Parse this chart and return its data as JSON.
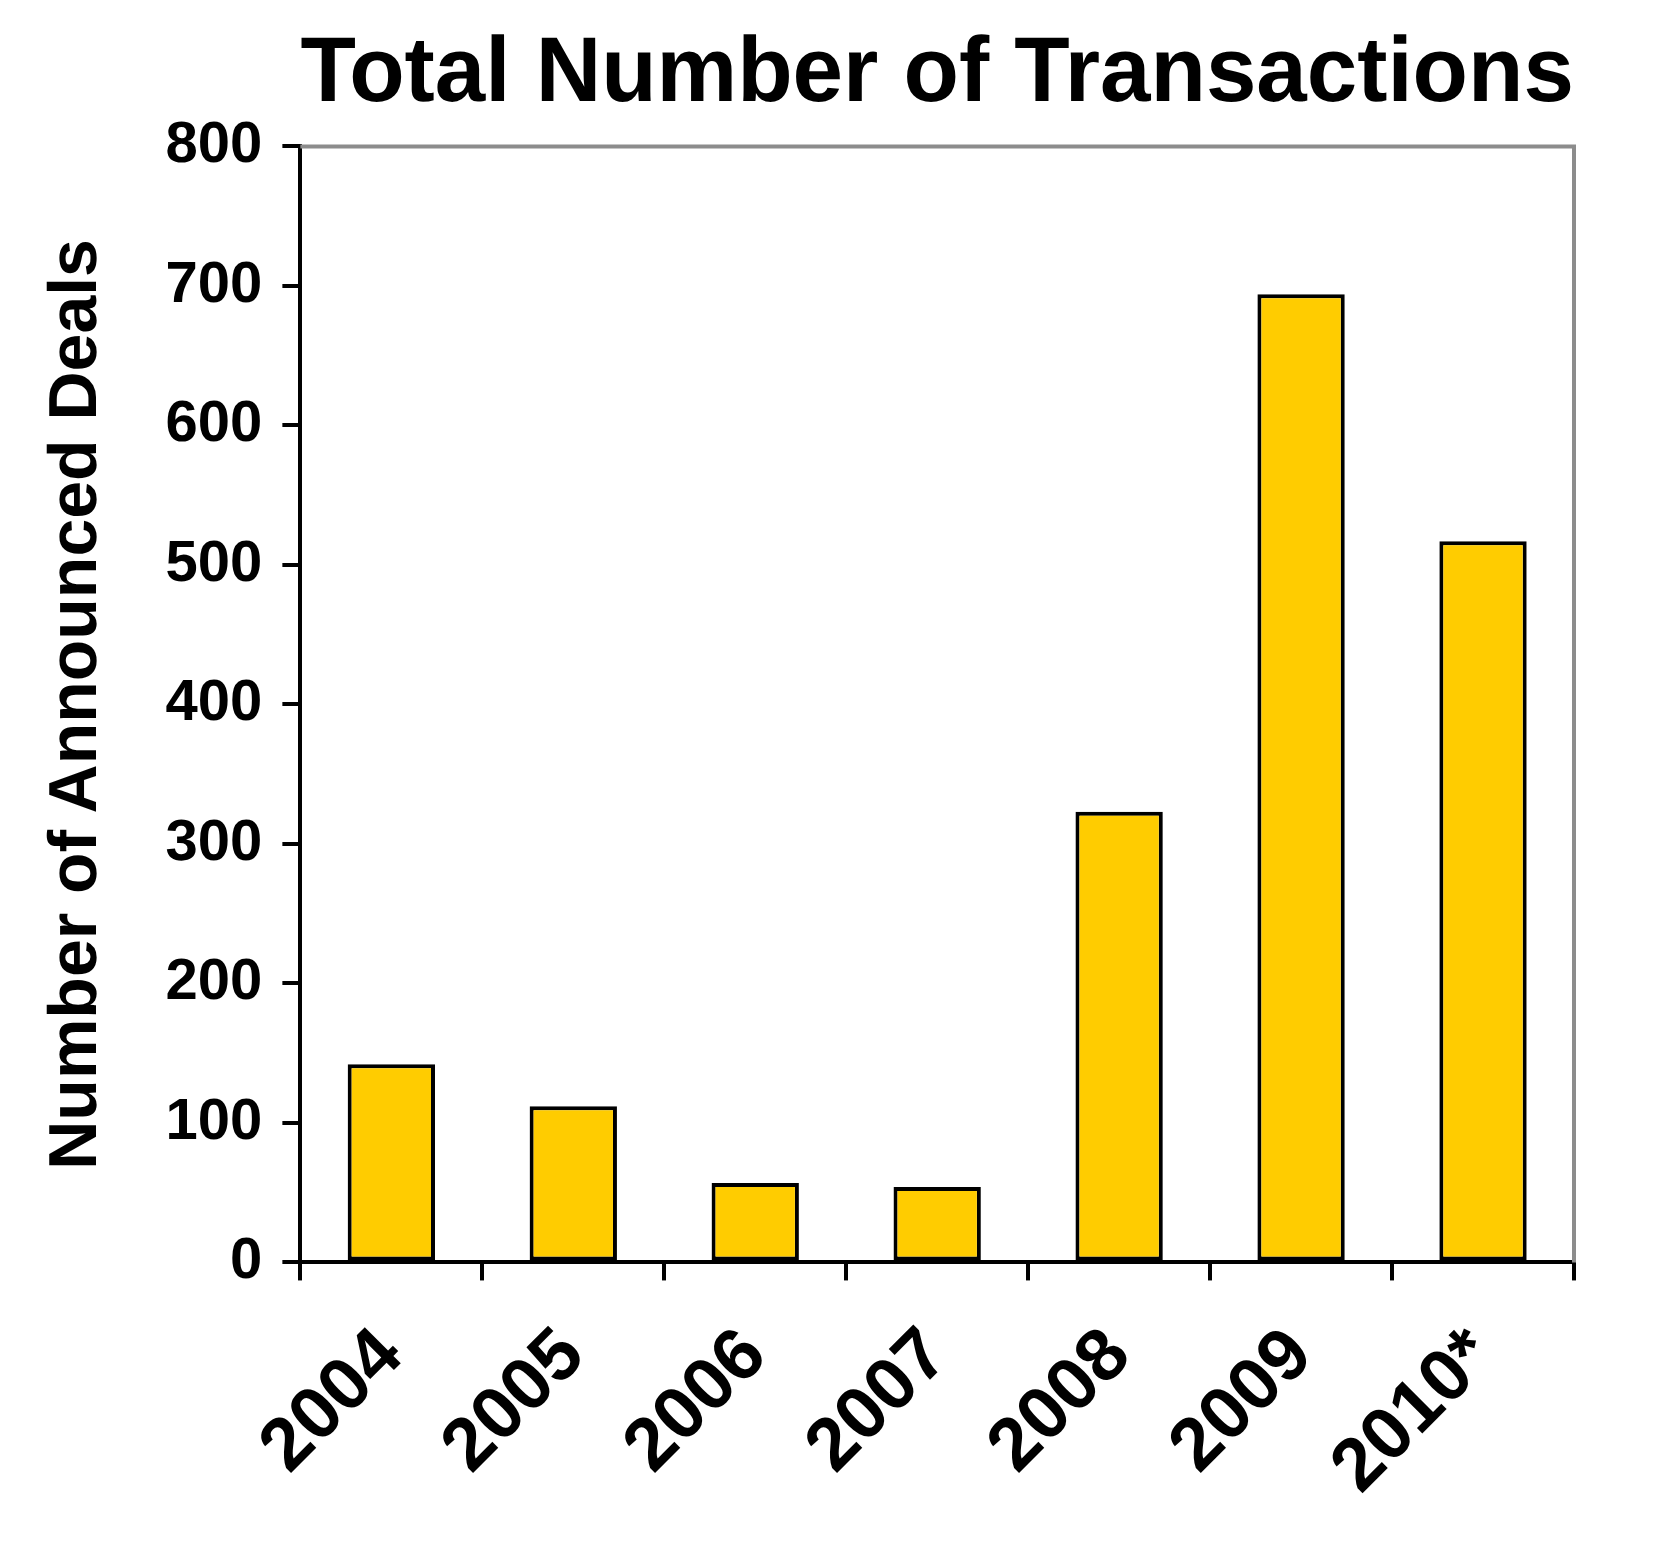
{
  "chart_data": {
    "type": "bar",
    "title": "Total Number of Transactions",
    "ylabel": "Number of Announced Deals",
    "categories": [
      "2004",
      "2005",
      "2006",
      "2007",
      "2008",
      "2009",
      "2010*"
    ],
    "values": [
      142,
      112,
      57,
      54,
      323,
      694,
      517
    ],
    "color": "#ffcc00",
    "ylim": [
      0,
      800
    ],
    "yticks": [
      0,
      100,
      200,
      300,
      400,
      500,
      600,
      700,
      800
    ],
    "grid": false
  }
}
